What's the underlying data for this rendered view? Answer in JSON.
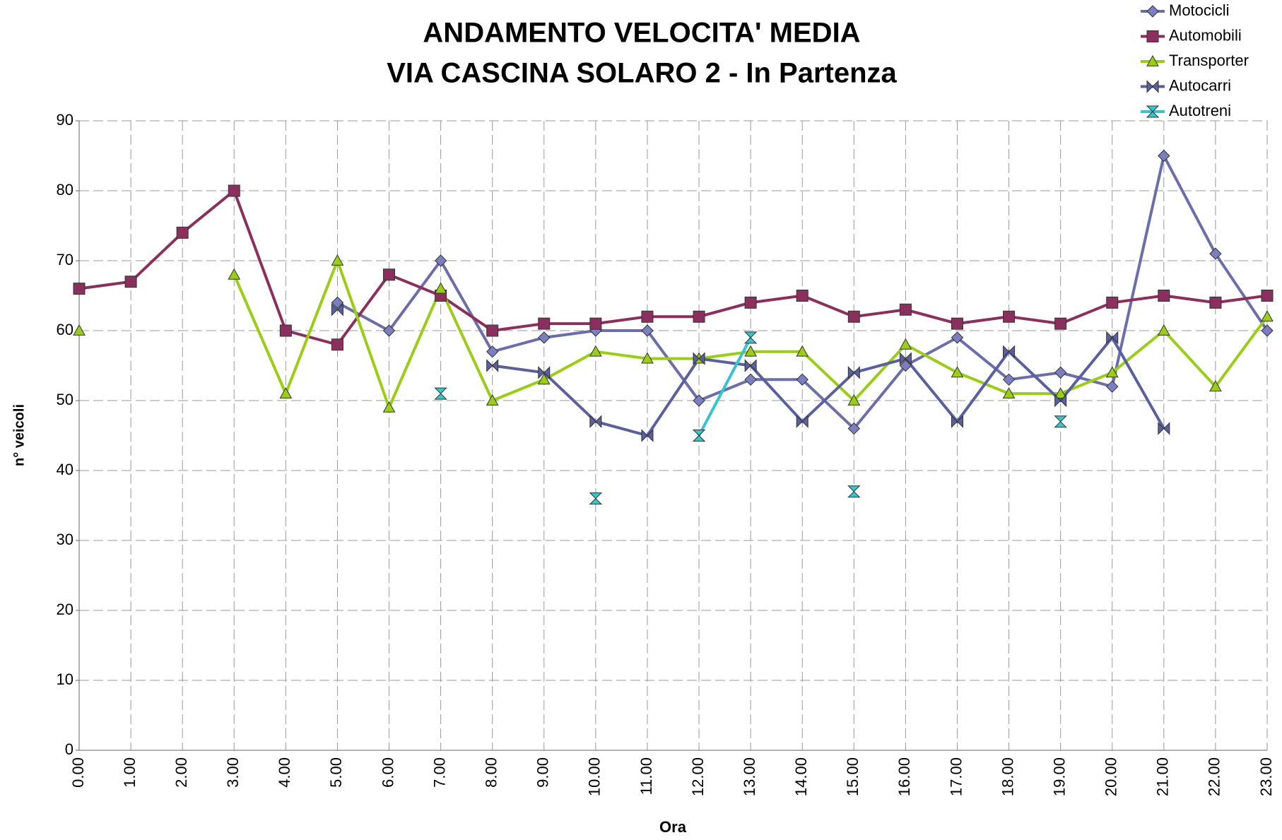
{
  "chart_data": {
    "type": "line",
    "title": "ANDAMENTO VELOCITA' MEDIA",
    "subtitle": "VIA CASCINA SOLARO 2 - In Partenza",
    "x_label": "Ora",
    "y_label": "n° veicoli",
    "categories": [
      "0.00",
      "1.00",
      "2.00",
      "3.00",
      "4.00",
      "5.00",
      "6.00",
      "7.00",
      "8.00",
      "9.00",
      "10.00",
      "11.00",
      "12.00",
      "13.00",
      "14.00",
      "15.00",
      "16.00",
      "17.00",
      "18.00",
      "19.00",
      "20.00",
      "21.00",
      "22.00",
      "23.00"
    ],
    "ylim": [
      0,
      90
    ],
    "yticks": [
      0,
      10,
      20,
      30,
      40,
      50,
      60,
      70,
      80,
      90
    ],
    "grid": true,
    "legend": "top-right",
    "series": [
      {
        "name": "Motocicli",
        "color": "#6b6ea8",
        "marker": "diamond",
        "values": [
          null,
          null,
          null,
          null,
          null,
          64,
          60,
          70,
          57,
          59,
          60,
          60,
          50,
          53,
          53,
          46,
          55,
          59,
          53,
          54,
          52,
          85,
          71,
          60
        ]
      },
      {
        "name": "Automobili",
        "color": "#8b2f5e",
        "marker": "square",
        "values": [
          66,
          67,
          74,
          80,
          60,
          58,
          68,
          65,
          60,
          61,
          61,
          62,
          62,
          64,
          65,
          62,
          63,
          61,
          62,
          61,
          64,
          65,
          64,
          65
        ]
      },
      {
        "name": "Transporter",
        "color": "#9acd16",
        "marker": "triangle",
        "values": [
          60,
          null,
          null,
          68,
          51,
          70,
          49,
          66,
          50,
          53,
          57,
          56,
          56,
          57,
          57,
          50,
          58,
          54,
          51,
          51,
          54,
          60,
          52,
          62
        ]
      },
      {
        "name": "Autocarri",
        "color": "#5a5f9e",
        "marker": "bowtie",
        "values": [
          null,
          null,
          null,
          null,
          null,
          63,
          null,
          null,
          55,
          54,
          47,
          45,
          56,
          55,
          47,
          54,
          56,
          47,
          57,
          50,
          59,
          46,
          null,
          null
        ]
      },
      {
        "name": "Autotreni",
        "color": "#36c5cc",
        "marker": "hourglass",
        "values": [
          null,
          null,
          null,
          null,
          null,
          null,
          null,
          51,
          null,
          null,
          36,
          null,
          45,
          59,
          null,
          37,
          null,
          null,
          null,
          47,
          null,
          null,
          null,
          null
        ]
      }
    ]
  }
}
